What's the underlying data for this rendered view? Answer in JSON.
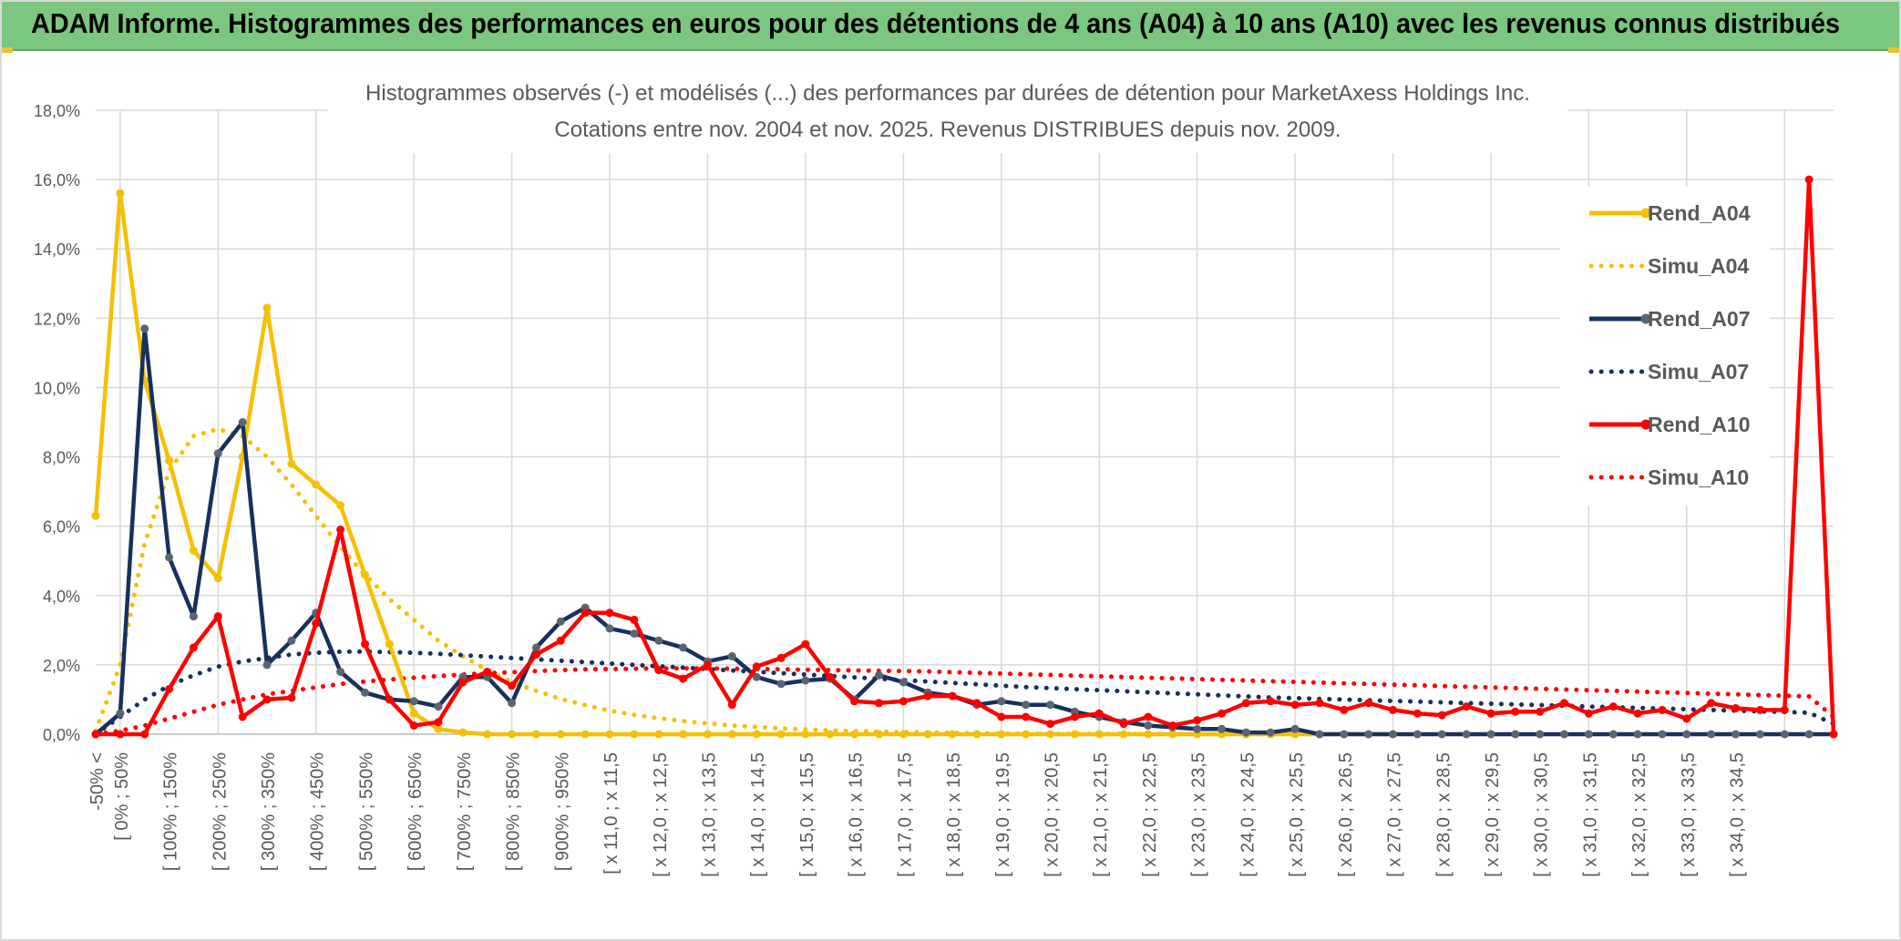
{
  "header": {
    "title": "ADAM Informe. Histogrammes des performances en euros pour des détentions de 4 ans (A04) à 10 ans (A10) avec les revenus connus distribués"
  },
  "chart_data": {
    "type": "line",
    "title": "Histogrammes observés (-) et modélisés (...) des performances par durées de détention pour MarketAxess Holdings Inc.",
    "subtitle": "Cotations entre nov. 2004 et nov. 2025. Revenus DISTRIBUES depuis nov. 2009.",
    "ylim": [
      0,
      18
    ],
    "y_ticks": [
      "0,0%",
      "2,0%",
      "4,0%",
      "6,0%",
      "8,0%",
      "10,0%",
      "12,0%",
      "14,0%",
      "16,0%",
      "18,0%"
    ],
    "grid": true,
    "legend_position": "right",
    "x_tick_labels": [
      "-50% <",
      "[ 0% ; 50%",
      "[ 100% ; 150%",
      "[ 200% ; 250%",
      "[ 300% ; 350%",
      "[ 400% ; 450%",
      "[ 500% ; 550%",
      "[ 600% ; 650%",
      "[ 700% ; 750%",
      "[ 800% ; 850%",
      "[ 900% ; 950%",
      "[ x 11,0 ; x 11,5",
      "[ x 12,0 ; x 12,5",
      "[ x 13,0 ; x 13,5",
      "[ x 14,0 ; x 14,5",
      "[ x 15,0 ; x 15,5",
      "[ x 16,0 ; x 16,5",
      "[ x 17,0 ; x 17,5",
      "[ x 18,0 ; x 18,5",
      "[ x 19,0 ; x 19,5",
      "[ x 20,0 ; x 20,5",
      "[ x 21,0 ; x 21,5",
      "[ x 22,0 ; x 22,5",
      "[ x 23,0 ; x 23,5",
      "[ x 24,0 ; x 24,5",
      "[ x 25,0 ; x 25,5",
      "[ x 26,0 ; x 26,5",
      "[ x 27,0 ; x 27,5",
      "[ x 28,0 ; x 28,5",
      "[ x 29,0 ; x 29,5",
      "[ x 30,0 ; x 30,5",
      "[ x 31,0 ; x 31,5",
      "[ x 32,0 ; x 32,5",
      "[ x 33,0 ; x 33,5",
      "[ x 34,0 ; x 34,5"
    ],
    "series": [
      {
        "name": "Rend_A04",
        "style": "solid",
        "color": "#f5c002",
        "values": [
          6.3,
          15.6,
          10.2,
          7.9,
          5.3,
          4.5,
          8.0,
          12.3,
          7.8,
          7.2,
          6.6,
          4.6,
          2.6,
          0.6,
          0.15,
          0.05,
          0,
          0,
          0,
          0,
          0,
          0,
          0,
          0,
          0,
          0,
          0,
          0,
          0,
          0,
          0,
          0,
          0,
          0,
          0,
          0,
          0,
          0,
          0,
          0,
          0,
          0,
          0,
          0,
          0,
          0,
          0,
          0,
          0,
          0,
          0,
          0,
          0,
          0
        ]
      },
      {
        "name": "Simu_A04",
        "style": "dotted",
        "color": "#f5c002",
        "values": [
          0.1,
          2.0,
          5.5,
          7.6,
          8.6,
          8.8,
          8.6,
          8.0,
          7.2,
          6.3,
          5.4,
          4.6,
          3.9,
          3.3,
          2.7,
          2.25,
          1.85,
          1.5,
          1.25,
          1.02,
          0.84,
          0.68,
          0.56,
          0.46,
          0.38,
          0.31,
          0.25,
          0.21,
          0.17,
          0.14,
          0.11,
          0.09,
          0.07,
          0.06,
          0.05,
          0.04,
          0.03,
          0.02,
          0.02,
          0.01,
          0.01,
          0.01,
          0.01,
          0,
          0,
          0,
          0,
          0,
          0,
          0,
          0,
          0
        ]
      },
      {
        "name": "Rend_A07",
        "style": "solid",
        "color": "#17305e",
        "values": [
          0,
          0.6,
          11.7,
          5.1,
          3.4,
          8.1,
          9.0,
          2.0,
          2.7,
          3.5,
          1.8,
          1.2,
          1.0,
          0.95,
          0.8,
          1.65,
          1.65,
          0.9,
          2.5,
          3.25,
          3.65,
          3.05,
          2.9,
          2.7,
          2.5,
          2.1,
          2.25,
          1.65,
          1.45,
          1.55,
          1.6,
          1.0,
          1.7,
          1.5,
          1.2,
          1.1,
          0.85,
          0.95,
          0.85,
          0.85,
          0.65,
          0.5,
          0.35,
          0.25,
          0.2,
          0.15,
          0.15,
          0.05,
          0.05,
          0.15,
          0,
          0,
          0,
          0,
          0,
          0,
          0,
          0,
          0,
          0,
          0,
          0,
          0,
          0,
          0,
          0,
          0,
          0,
          0,
          0,
          0,
          0
        ]
      },
      {
        "name": "Simu_A07",
        "style": "dotted",
        "color": "#17305e",
        "values": [
          0,
          0.5,
          1.0,
          1.4,
          1.7,
          1.95,
          2.1,
          2.2,
          2.3,
          2.35,
          2.38,
          2.38,
          2.37,
          2.35,
          2.32,
          2.28,
          2.24,
          2.2,
          2.16,
          2.12,
          2.08,
          2.04,
          2.0,
          1.96,
          1.92,
          1.88,
          1.84,
          1.8,
          1.76,
          1.72,
          1.68,
          1.64,
          1.6,
          1.56,
          1.52,
          1.48,
          1.44,
          1.4,
          1.36,
          1.33,
          1.3,
          1.27,
          1.24,
          1.21,
          1.18,
          1.15,
          1.12,
          1.09,
          1.06,
          1.04,
          1.02,
          1.0,
          0.98,
          0.96,
          0.94,
          0.92,
          0.9,
          0.88,
          0.86,
          0.84,
          0.82,
          0.8,
          0.78,
          0.76,
          0.74,
          0.72,
          0.7,
          0.68,
          0.66,
          0.64,
          0.62,
          0.3
        ]
      },
      {
        "name": "Rend_A10",
        "style": "solid",
        "color": "#ff0000",
        "values": [
          0,
          0,
          0,
          1.3,
          2.5,
          3.4,
          0.5,
          1.0,
          1.05,
          3.2,
          5.9,
          2.6,
          1.0,
          0.25,
          0.35,
          1.5,
          1.8,
          1.4,
          2.3,
          2.7,
          3.5,
          3.5,
          3.3,
          1.85,
          1.6,
          2.0,
          0.85,
          1.95,
          2.2,
          2.6,
          1.65,
          0.95,
          0.9,
          0.95,
          1.1,
          1.1,
          0.9,
          0.5,
          0.5,
          0.3,
          0.5,
          0.6,
          0.3,
          0.5,
          0.25,
          0.4,
          0.6,
          0.9,
          0.95,
          0.85,
          0.9,
          0.7,
          0.9,
          0.7,
          0.6,
          0.55,
          0.8,
          0.6,
          0.65,
          0.65,
          0.9,
          0.6,
          0.8,
          0.6,
          0.7,
          0.45,
          0.9,
          0.75,
          0.7,
          0.7,
          16.0,
          0
        ]
      },
      {
        "name": "Simu_A10",
        "style": "dotted",
        "color": "#ff0000",
        "values": [
          0,
          0.1,
          0.25,
          0.45,
          0.65,
          0.85,
          1.0,
          1.15,
          1.25,
          1.35,
          1.45,
          1.52,
          1.58,
          1.63,
          1.68,
          1.72,
          1.76,
          1.79,
          1.82,
          1.85,
          1.87,
          1.88,
          1.89,
          1.9,
          1.9,
          1.9,
          1.89,
          1.88,
          1.87,
          1.86,
          1.85,
          1.84,
          1.83,
          1.82,
          1.81,
          1.79,
          1.77,
          1.75,
          1.73,
          1.71,
          1.69,
          1.67,
          1.65,
          1.63,
          1.61,
          1.59,
          1.57,
          1.55,
          1.53,
          1.51,
          1.49,
          1.47,
          1.45,
          1.43,
          1.41,
          1.39,
          1.37,
          1.35,
          1.33,
          1.31,
          1.29,
          1.27,
          1.25,
          1.23,
          1.21,
          1.19,
          1.17,
          1.15,
          1.13,
          1.11,
          1.09,
          0.5
        ]
      }
    ]
  }
}
